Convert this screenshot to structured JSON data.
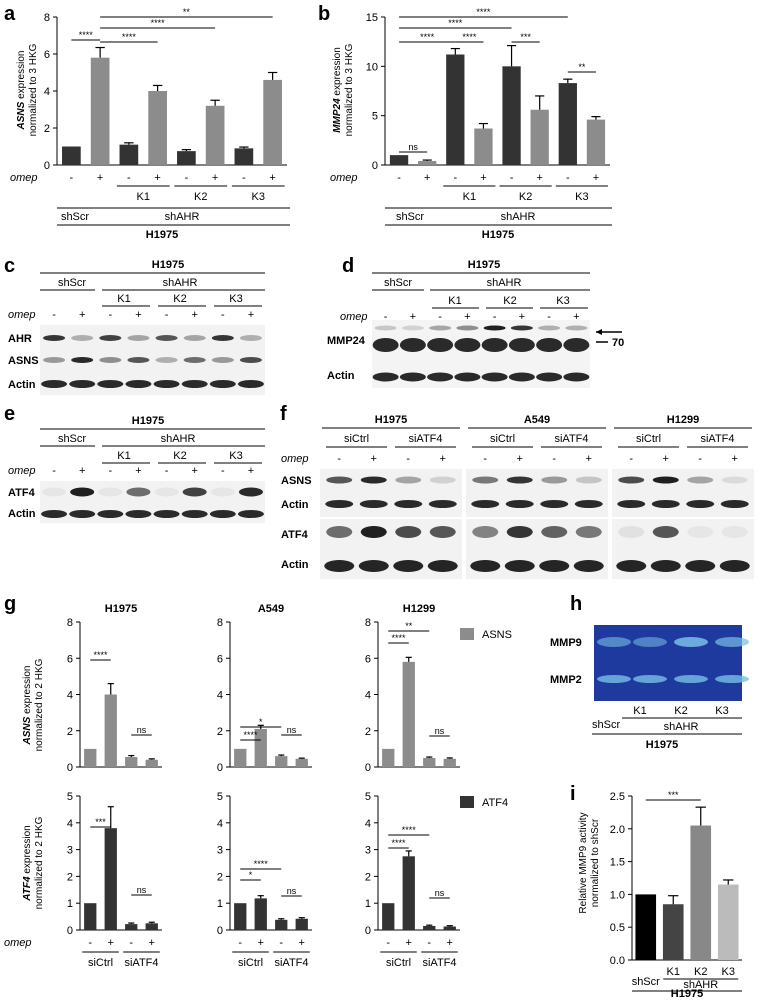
{
  "panels": {
    "a": {
      "label": "a",
      "ylabel_gene": "ASNS",
      "ylabel_rest": " expression",
      "ylabel2": "normalized to 3 HKG",
      "treat_label": "omep",
      "minus": "-",
      "plus": "+",
      "kd": [
        "K1",
        "K2",
        "K3"
      ],
      "grp1": "shScr",
      "grp2": "shAHR",
      "cell": "H1975"
    },
    "b": {
      "label": "b",
      "ylabel_gene": "MMP24",
      "ylabel_rest": " expression",
      "ylabel2": "normalized to 3 HKG",
      "treat_label": "omep",
      "minus": "-",
      "plus": "+",
      "kd": [
        "K1",
        "K2",
        "K3"
      ],
      "grp1": "shScr",
      "grp2": "shAHR",
      "cell": "H1975"
    },
    "c": {
      "label": "c",
      "cell": "H1975",
      "grp1": "shScr",
      "grp2": "shAHR",
      "kd": [
        "K1",
        "K2",
        "K3"
      ],
      "treat_label": "omep",
      "minus": "-",
      "plus": "+",
      "rows": [
        "AHR",
        "ASNS",
        "Actin"
      ]
    },
    "d": {
      "label": "d",
      "cell": "H1975",
      "grp1": "shScr",
      "grp2": "shAHR",
      "kd": [
        "K1",
        "K2",
        "K3"
      ],
      "treat_label": "omep",
      "minus": "-",
      "plus": "+",
      "rows": [
        "MMP24",
        "Actin"
      ],
      "marker": "70"
    },
    "e": {
      "label": "e",
      "cell": "H1975",
      "grp1": "shScr",
      "grp2": "shAHR",
      "kd": [
        "K1",
        "K2",
        "K3"
      ],
      "treat_label": "omep",
      "minus": "-",
      "plus": "+",
      "rows": [
        "ATF4",
        "Actin"
      ]
    },
    "f": {
      "label": "f",
      "cells": [
        "H1975",
        "A549",
        "H1299"
      ],
      "sub": [
        "siCtrl",
        "siATF4"
      ],
      "treat_label": "omep",
      "minus": "-",
      "plus": "+",
      "rows": [
        "ASNS",
        "Actin",
        "ATF4",
        "Actin"
      ]
    },
    "g": {
      "label": "g",
      "cells": [
        "H1975",
        "A549",
        "H1299"
      ],
      "ylabel_top_gene": "ASNS",
      "ylabel_top_rest": " expression",
      "ylabel_bot_gene": "ATF4",
      "ylabel_bot_rest": " expression",
      "ylabel2": "normalized to 2 HKG",
      "legend_top": "ASNS",
      "legend_bot": "ATF4",
      "treat_label": "omep",
      "minus": "-",
      "plus": "+",
      "sub": [
        "siCtrl",
        "siATF4"
      ]
    },
    "h": {
      "label": "h",
      "bands": [
        "MMP9",
        "MMP2"
      ],
      "kd": [
        "K1",
        "K2",
        "K3"
      ],
      "grp1": "shScr",
      "grp2": "shAHR",
      "cell": "H1975"
    },
    "i": {
      "label": "i",
      "ylabel1": "Relative MMP9 activity",
      "ylabel2": "normalized to shScr",
      "kd": [
        "K1",
        "K2",
        "K3"
      ],
      "grp1": "shScr",
      "grp2": "shAHR",
      "cell": "H1975"
    }
  },
  "chart_data": [
    {
      "id": "a",
      "type": "bar",
      "categories": [
        "shScr -",
        "shScr +",
        "K1 -",
        "K1 +",
        "K2 -",
        "K2 +",
        "K3 -",
        "K3 +"
      ],
      "values": [
        1.0,
        5.8,
        1.1,
        4.0,
        0.75,
        3.2,
        0.9,
        4.6
      ],
      "errors": [
        0,
        0.55,
        0.1,
        0.3,
        0.08,
        0.3,
        0.07,
        0.4
      ],
      "ylim": [
        0,
        8
      ],
      "yticks": [
        "0",
        "2",
        "4",
        "6",
        "8"
      ],
      "colors": [
        "#333333",
        "#8c8c8c"
      ],
      "significance": [
        {
          "from": 0,
          "to": 1,
          "label": "****"
        },
        {
          "from": 1,
          "to": 3,
          "label": "****"
        },
        {
          "from": 1,
          "to": 5,
          "label": "****"
        },
        {
          "from": 1,
          "to": 7,
          "label": "**"
        }
      ]
    },
    {
      "id": "b",
      "type": "bar",
      "categories": [
        "shScr -",
        "shScr +",
        "K1 -",
        "K1 +",
        "K2 -",
        "K2 +",
        "K3 -",
        "K3 +"
      ],
      "values": [
        1.0,
        0.4,
        11.2,
        3.7,
        10.0,
        5.6,
        8.3,
        4.6
      ],
      "errors": [
        0,
        0.1,
        0.6,
        0.5,
        2.1,
        1.4,
        0.4,
        0.3
      ],
      "ylim": [
        0,
        15
      ],
      "yticks": [
        "0",
        "5",
        "10",
        "15"
      ],
      "colors": [
        "#333333",
        "#8c8c8c"
      ],
      "significance": [
        {
          "from": 0,
          "to": 1,
          "label": "ns"
        },
        {
          "from": 0,
          "to": 2,
          "label": "****"
        },
        {
          "from": 2,
          "to": 3,
          "label": "****"
        },
        {
          "from": 0,
          "to": 4,
          "label": "****"
        },
        {
          "from": 4,
          "to": 5,
          "label": "***"
        },
        {
          "from": 0,
          "to": 6,
          "label": "****"
        },
        {
          "from": 6,
          "to": 7,
          "label": "**"
        }
      ]
    },
    {
      "id": "g-asns-H1975",
      "type": "bar",
      "values": [
        1.0,
        4.0,
        0.55,
        0.4
      ],
      "errors": [
        0,
        0.6,
        0.08,
        0.05
      ],
      "ylim": [
        0,
        8
      ],
      "yticks": [
        "0",
        "2",
        "4",
        "6",
        "8"
      ],
      "color": "#8c8c8c",
      "significance": [
        {
          "from": 0,
          "to": 1,
          "label": "****"
        },
        {
          "from": 2,
          "to": 3,
          "label": "ns"
        }
      ]
    },
    {
      "id": "g-asns-A549",
      "type": "bar",
      "values": [
        1.0,
        2.1,
        0.6,
        0.45
      ],
      "errors": [
        0,
        0.2,
        0.06,
        0.04
      ],
      "ylim": [
        0,
        8
      ],
      "yticks": [
        "0",
        "2",
        "4",
        "6",
        "8"
      ],
      "color": "#8c8c8c",
      "significance": [
        {
          "from": 0,
          "to": 1,
          "label": "****"
        },
        {
          "from": 0,
          "to": 2,
          "label": "*"
        },
        {
          "from": 2,
          "to": 3,
          "label": "ns"
        }
      ]
    },
    {
      "id": "g-asns-H1299",
      "type": "bar",
      "values": [
        1.0,
        5.8,
        0.5,
        0.45
      ],
      "errors": [
        0,
        0.25,
        0.05,
        0.05
      ],
      "ylim": [
        0,
        8
      ],
      "yticks": [
        "0",
        "2",
        "4",
        "6",
        "8"
      ],
      "color": "#8c8c8c",
      "significance": [
        {
          "from": 0,
          "to": 1,
          "label": "****"
        },
        {
          "from": 0,
          "to": 2,
          "label": "**"
        },
        {
          "from": 2,
          "to": 3,
          "label": "ns"
        }
      ]
    },
    {
      "id": "g-atf4-H1975",
      "type": "bar",
      "values": [
        1.0,
        3.8,
        0.22,
        0.25
      ],
      "errors": [
        0,
        0.8,
        0.04,
        0.04
      ],
      "ylim": [
        0,
        5
      ],
      "yticks": [
        "0",
        "1",
        "2",
        "3",
        "4",
        "5"
      ],
      "color": "#333333",
      "significance": [
        {
          "from": 0,
          "to": 1,
          "label": "***"
        },
        {
          "from": 2,
          "to": 3,
          "label": "ns"
        }
      ]
    },
    {
      "id": "g-atf4-A549",
      "type": "bar",
      "values": [
        1.0,
        1.18,
        0.38,
        0.42
      ],
      "errors": [
        0,
        0.1,
        0.04,
        0.04
      ],
      "ylim": [
        0,
        5
      ],
      "yticks": [
        "0",
        "1",
        "2",
        "3",
        "4",
        "5"
      ],
      "color": "#333333",
      "significance": [
        {
          "from": 0,
          "to": 1,
          "label": "*"
        },
        {
          "from": 0,
          "to": 2,
          "label": "****"
        },
        {
          "from": 2,
          "to": 3,
          "label": "ns"
        }
      ]
    },
    {
      "id": "g-atf4-H1299",
      "type": "bar",
      "values": [
        1.0,
        2.75,
        0.15,
        0.13
      ],
      "errors": [
        0,
        0.2,
        0.03,
        0.03
      ],
      "ylim": [
        0,
        5
      ],
      "yticks": [
        "0",
        "1",
        "2",
        "3",
        "4",
        "5"
      ],
      "color": "#333333",
      "significance": [
        {
          "from": 0,
          "to": 1,
          "label": "****"
        },
        {
          "from": 0,
          "to": 2,
          "label": "****"
        },
        {
          "from": 2,
          "to": 3,
          "label": "ns"
        }
      ]
    },
    {
      "id": "i",
      "type": "bar",
      "categories": [
        "shScr",
        "K1",
        "K2",
        "K3"
      ],
      "values": [
        1.0,
        0.85,
        2.05,
        1.15
      ],
      "errors": [
        0,
        0.13,
        0.28,
        0.07
      ],
      "ylim": [
        0,
        2.5
      ],
      "yticks": [
        "0.0",
        "0.5",
        "1.0",
        "1.5",
        "2.0",
        "2.5"
      ],
      "colors": [
        "#000000",
        "#444444",
        "#888888",
        "#bbbbbb"
      ],
      "significance": [
        {
          "from": 0,
          "to": 2,
          "label": "***"
        }
      ]
    }
  ]
}
